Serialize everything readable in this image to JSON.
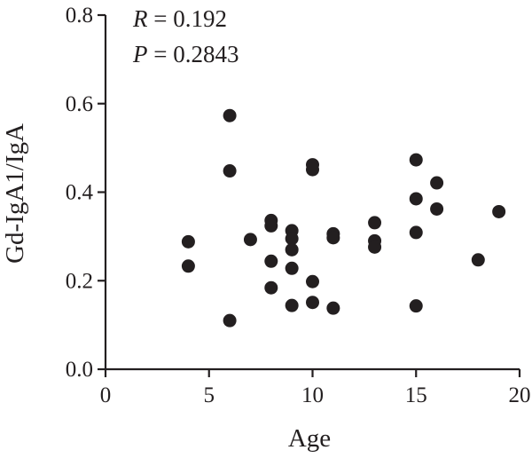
{
  "chart_data": {
    "type": "scatter",
    "title": "",
    "xlabel": "Age",
    "ylabel": "Gd-IgA1/IgA",
    "xlim": [
      0,
      20
    ],
    "ylim": [
      0,
      0.8
    ],
    "xticks": [
      "0",
      "5",
      "10",
      "15",
      "20"
    ],
    "yticks": [
      "0.0",
      "0.2",
      "0.4",
      "0.6",
      "0.8"
    ],
    "annotations": {
      "r_label": "R",
      "r_value": " = 0.192",
      "p_label": "P",
      "p_value": " = 0.2843"
    },
    "grid": false,
    "marker_color": "#231f20",
    "points": [
      {
        "x": 4,
        "y": 0.288
      },
      {
        "x": 4,
        "y": 0.233
      },
      {
        "x": 6,
        "y": 0.573
      },
      {
        "x": 6,
        "y": 0.448
      },
      {
        "x": 6,
        "y": 0.11
      },
      {
        "x": 7,
        "y": 0.293
      },
      {
        "x": 8,
        "y": 0.336
      },
      {
        "x": 8,
        "y": 0.324
      },
      {
        "x": 8,
        "y": 0.244
      },
      {
        "x": 8,
        "y": 0.184
      },
      {
        "x": 9,
        "y": 0.313
      },
      {
        "x": 9,
        "y": 0.295
      },
      {
        "x": 9,
        "y": 0.27
      },
      {
        "x": 9,
        "y": 0.228
      },
      {
        "x": 9,
        "y": 0.144
      },
      {
        "x": 10,
        "y": 0.462
      },
      {
        "x": 10,
        "y": 0.451
      },
      {
        "x": 10,
        "y": 0.198
      },
      {
        "x": 10,
        "y": 0.151
      },
      {
        "x": 11,
        "y": 0.306
      },
      {
        "x": 11,
        "y": 0.297
      },
      {
        "x": 11,
        "y": 0.138
      },
      {
        "x": 13,
        "y": 0.331
      },
      {
        "x": 13,
        "y": 0.29
      },
      {
        "x": 13,
        "y": 0.276
      },
      {
        "x": 15,
        "y": 0.473
      },
      {
        "x": 15,
        "y": 0.385
      },
      {
        "x": 15,
        "y": 0.309
      },
      {
        "x": 15,
        "y": 0.143
      },
      {
        "x": 16,
        "y": 0.421
      },
      {
        "x": 16,
        "y": 0.362
      },
      {
        "x": 18,
        "y": 0.247
      },
      {
        "x": 19,
        "y": 0.356
      }
    ]
  }
}
